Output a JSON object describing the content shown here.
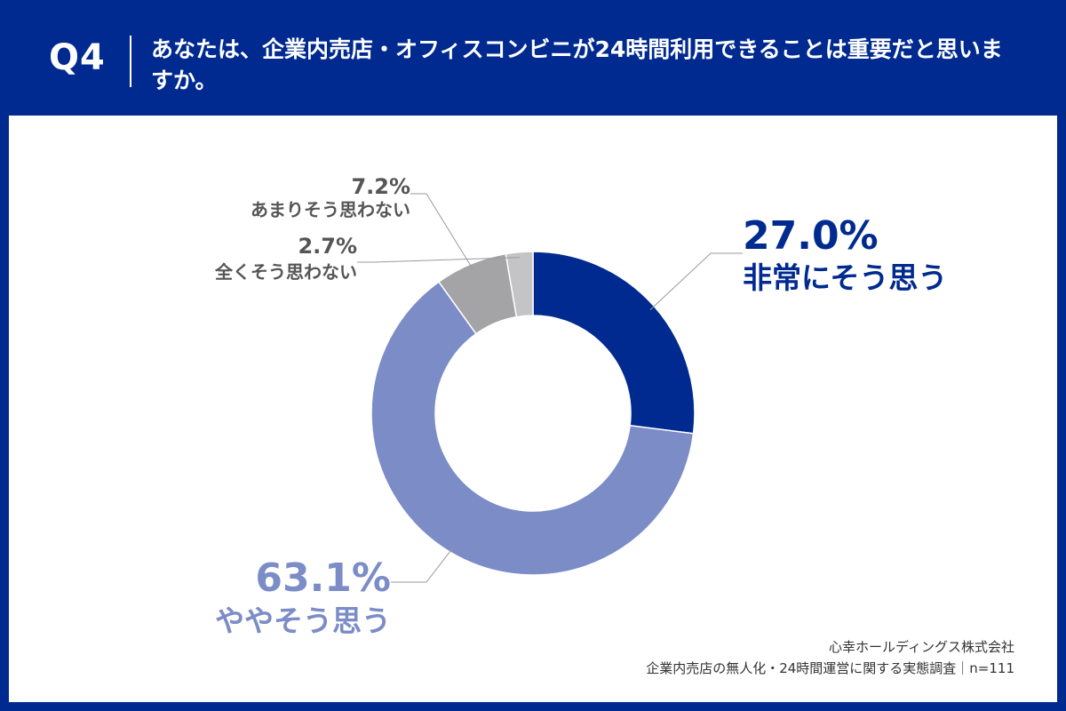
{
  "header": {
    "question_number": "Q4",
    "question_text": "あなたは、企業内売店・オフィスコンビニが24時間利用できることは重要だと思いますか。"
  },
  "footer": {
    "company": "心幸ホールディングス株式会社",
    "survey": "企業内売店の無人化・24時間運営に関する実態調査｜n=111"
  },
  "chart_data": {
    "type": "pie",
    "style": "donut",
    "title": "",
    "slices": [
      {
        "label": "非常にそう思う",
        "value": 27.0,
        "display": "27.0%",
        "color": "#002a8f"
      },
      {
        "label": "ややそう思う",
        "value": 63.1,
        "display": "63.1%",
        "color": "#7b8cc7"
      },
      {
        "label": "あまりそう思わない",
        "value": 7.2,
        "display": "7.2%",
        "color": "#a4a4a6"
      },
      {
        "label": "全くそう思わない",
        "value": 2.7,
        "display": "2.7%",
        "color": "#c4c4c6"
      }
    ]
  }
}
